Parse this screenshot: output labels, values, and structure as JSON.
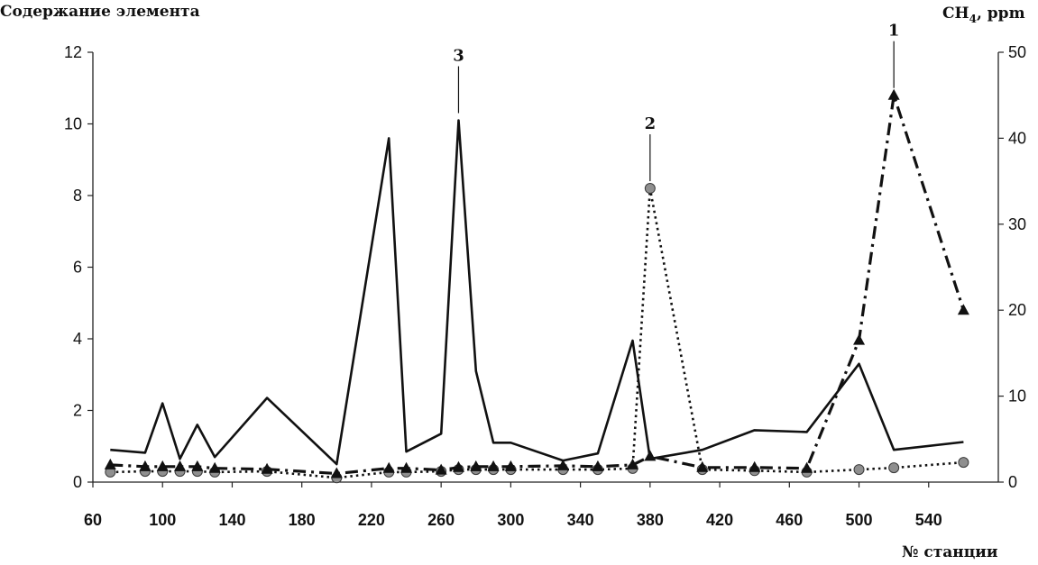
{
  "chart_data": {
    "type": "line",
    "title": "",
    "y_left_label": "Содержание элемента",
    "y_right_label_main": "CH",
    "y_right_label_sub": "4",
    "y_right_label_tail": ", ppm",
    "xlabel": "№ станции",
    "xlim": [
      60,
      580
    ],
    "ylim_left": [
      0,
      12
    ],
    "ylim_right": [
      0,
      50
    ],
    "x_ticks": [
      60,
      100,
      140,
      180,
      220,
      260,
      300,
      340,
      380,
      420,
      460,
      500,
      540
    ],
    "y_left_ticks": [
      0,
      2,
      4,
      6,
      8,
      10,
      12
    ],
    "y_right_ticks": [
      0,
      10,
      20,
      30,
      40,
      50
    ],
    "grid": false,
    "legend": "none",
    "series": [
      {
        "axis": "left",
        "style": "solid",
        "marker": "none",
        "points": [
          [
            70,
            0.9
          ],
          [
            90,
            0.82
          ],
          [
            100,
            2.2
          ],
          [
            110,
            0.65
          ],
          [
            120,
            1.6
          ],
          [
            130,
            0.7
          ],
          [
            160,
            2.35
          ],
          [
            200,
            0.5
          ],
          [
            230,
            9.6
          ],
          [
            240,
            0.85
          ],
          [
            260,
            1.35
          ],
          [
            270,
            10.1
          ],
          [
            280,
            3.1
          ],
          [
            290,
            1.1
          ],
          [
            300,
            1.1
          ],
          [
            330,
            0.6
          ],
          [
            350,
            0.8
          ],
          [
            370,
            3.95
          ],
          [
            380,
            0.65
          ],
          [
            410,
            0.9
          ],
          [
            440,
            1.45
          ],
          [
            470,
            1.4
          ],
          [
            500,
            3.3
          ],
          [
            520,
            0.9
          ],
          [
            560,
            1.12
          ]
        ]
      },
      {
        "axis": "left",
        "style": "dotted",
        "marker": "circle",
        "points": [
          [
            70,
            0.28
          ],
          [
            90,
            0.3
          ],
          [
            100,
            0.3
          ],
          [
            110,
            0.3
          ],
          [
            120,
            0.3
          ],
          [
            130,
            0.28
          ],
          [
            160,
            0.3
          ],
          [
            200,
            0.12
          ],
          [
            230,
            0.28
          ],
          [
            240,
            0.28
          ],
          [
            260,
            0.3
          ],
          [
            270,
            0.35
          ],
          [
            280,
            0.35
          ],
          [
            290,
            0.35
          ],
          [
            300,
            0.35
          ],
          [
            330,
            0.35
          ],
          [
            350,
            0.35
          ],
          [
            370,
            0.38
          ],
          [
            380,
            8.2
          ],
          [
            410,
            0.35
          ],
          [
            440,
            0.32
          ],
          [
            470,
            0.28
          ],
          [
            500,
            0.35
          ],
          [
            520,
            0.4
          ],
          [
            560,
            0.55
          ]
        ]
      },
      {
        "axis": "right",
        "style": "dash-dot",
        "marker": "triangle",
        "points": [
          [
            70,
            2
          ],
          [
            90,
            1.8
          ],
          [
            100,
            1.8
          ],
          [
            110,
            1.8
          ],
          [
            120,
            1.8
          ],
          [
            130,
            1.6
          ],
          [
            160,
            1.5
          ],
          [
            200,
            1
          ],
          [
            230,
            1.6
          ],
          [
            240,
            1.6
          ],
          [
            260,
            1.4
          ],
          [
            270,
            1.7
          ],
          [
            280,
            1.8
          ],
          [
            290,
            1.8
          ],
          [
            300,
            1.8
          ],
          [
            330,
            1.9
          ],
          [
            350,
            1.8
          ],
          [
            370,
            2
          ],
          [
            380,
            3
          ],
          [
            410,
            1.7
          ],
          [
            440,
            1.7
          ],
          [
            470,
            1.6
          ],
          [
            500,
            16.5
          ],
          [
            520,
            45
          ],
          [
            560,
            20
          ]
        ]
      }
    ],
    "annotations": [
      {
        "text": "3",
        "x": 270,
        "axis": "left",
        "y": 10.1
      },
      {
        "text": "2",
        "x": 380,
        "axis": "left",
        "y": 8.2
      },
      {
        "text": "1",
        "x": 520,
        "axis": "right",
        "y": 45
      }
    ]
  }
}
